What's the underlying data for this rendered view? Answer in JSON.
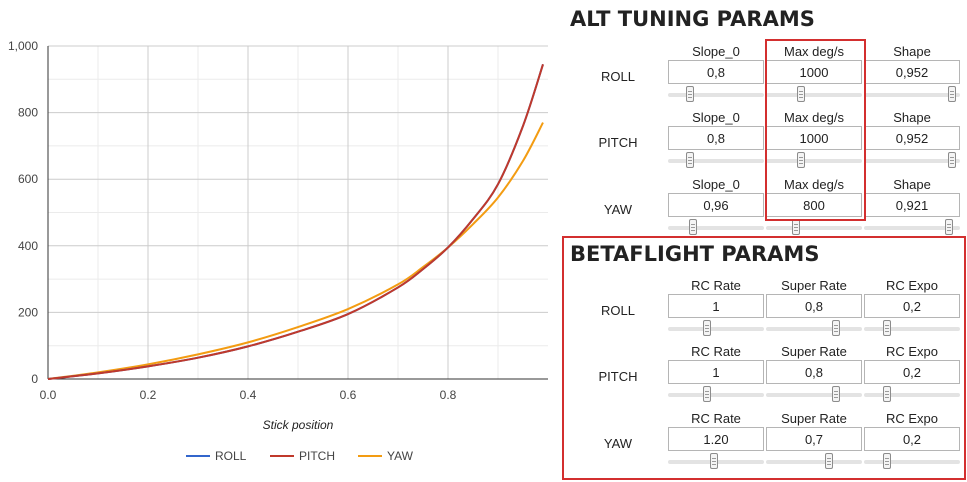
{
  "chart_data": {
    "type": "line",
    "xlabel": "Stick position",
    "ylabel": "",
    "xlim": [
      0,
      1
    ],
    "ylim": [
      0,
      1000
    ],
    "x_ticks": [
      "0.0",
      "0.2",
      "0.4",
      "0.6",
      "0.8"
    ],
    "y_ticks": [
      "0",
      "200",
      "400",
      "600",
      "800",
      "1,000"
    ],
    "grid": true,
    "legend_position": "bottom",
    "series": [
      {
        "name": "ROLL",
        "color": "#3366cc",
        "x": [
          0,
          0.1,
          0.2,
          0.3,
          0.4,
          0.5,
          0.6,
          0.7,
          0.75,
          0.8,
          0.85,
          0.9,
          0.95,
          0.99
        ],
        "y": [
          0,
          17,
          38,
          64,
          98,
          142,
          195,
          275,
          330,
          395,
          480,
          585,
          760,
          945
        ]
      },
      {
        "name": "PITCH",
        "color": "#c0392b",
        "x": [
          0,
          0.1,
          0.2,
          0.3,
          0.4,
          0.5,
          0.6,
          0.7,
          0.75,
          0.8,
          0.85,
          0.9,
          0.95,
          0.99
        ],
        "y": [
          0,
          17,
          38,
          64,
          98,
          142,
          195,
          275,
          330,
          395,
          480,
          585,
          760,
          945
        ]
      },
      {
        "name": "YAW",
        "color": "#f39c12",
        "x": [
          0,
          0.1,
          0.2,
          0.3,
          0.4,
          0.5,
          0.6,
          0.7,
          0.75,
          0.8,
          0.85,
          0.9,
          0.95,
          0.99
        ],
        "y": [
          0,
          20,
          44,
          74,
          110,
          156,
          210,
          284,
          336,
          395,
          465,
          545,
          655,
          770
        ]
      }
    ]
  },
  "alt": {
    "title": "ALT TUNING PARAMS",
    "rows": [
      {
        "axis": "ROLL",
        "params": [
          {
            "label": "Slope_0",
            "value": "0,8",
            "slider": 0.2
          },
          {
            "label": "Max deg/s",
            "value": "1000",
            "slider": 0.35
          },
          {
            "label": "Shape",
            "value": "0,952",
            "slider": 0.95
          }
        ]
      },
      {
        "axis": "PITCH",
        "params": [
          {
            "label": "Slope_0",
            "value": "0,8",
            "slider": 0.2
          },
          {
            "label": "Max deg/s",
            "value": "1000",
            "slider": 0.35
          },
          {
            "label": "Shape",
            "value": "0,952",
            "slider": 0.95
          }
        ]
      },
      {
        "axis": "YAW",
        "params": [
          {
            "label": "Slope_0",
            "value": "0,96",
            "slider": 0.24
          },
          {
            "label": "Max deg/s",
            "value": "800",
            "slider": 0.29
          },
          {
            "label": "Shape",
            "value": "0,921",
            "slider": 0.92
          }
        ]
      }
    ]
  },
  "betaflight": {
    "title": "BETAFLIGHT PARAMS",
    "rows": [
      {
        "axis": "ROLL",
        "params": [
          {
            "label": "RC Rate",
            "value": "1",
            "slider": 0.4
          },
          {
            "label": "Super Rate",
            "value": "0,8",
            "slider": 0.75
          },
          {
            "label": "RC Expo",
            "value": "0,2",
            "slider": 0.22
          }
        ]
      },
      {
        "axis": "PITCH",
        "params": [
          {
            "label": "RC Rate",
            "value": "1",
            "slider": 0.4
          },
          {
            "label": "Super Rate",
            "value": "0,8",
            "slider": 0.75
          },
          {
            "label": "RC Expo",
            "value": "0,2",
            "slider": 0.22
          }
        ]
      },
      {
        "axis": "YAW",
        "params": [
          {
            "label": "RC Rate",
            "value": "1.20",
            "slider": 0.48
          },
          {
            "label": "Super Rate",
            "value": "0,7",
            "slider": 0.67
          },
          {
            "label": "RC Expo",
            "value": "0,2",
            "slider": 0.22
          }
        ]
      }
    ]
  }
}
